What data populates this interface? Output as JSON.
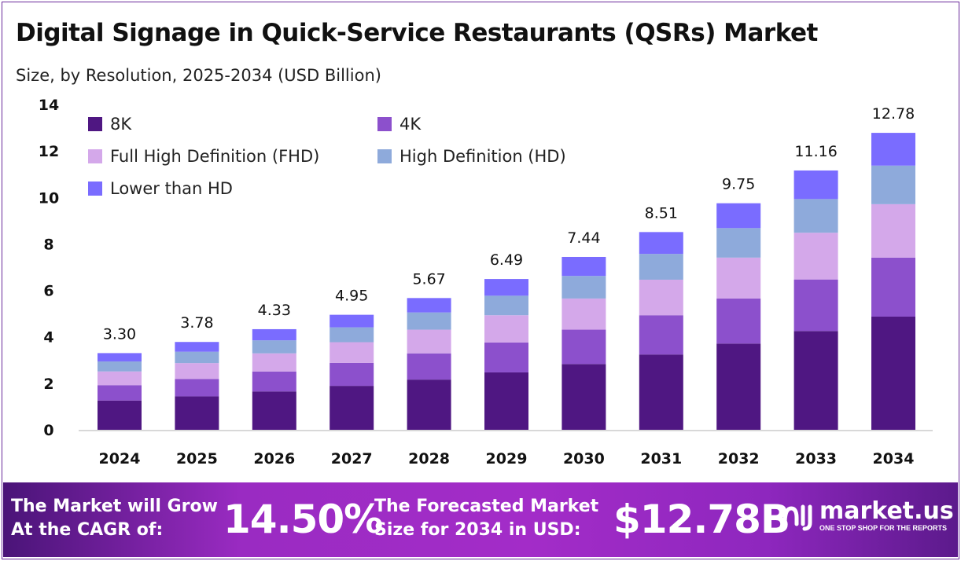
{
  "title": "Digital Signage in Quick-Service Restaurants (QSRs) Market",
  "subtitle": "Size, by Resolution, 2025-2034 (USD Billion)",
  "chart_data": {
    "type": "bar",
    "stacked": true,
    "categories": [
      "2024",
      "2025",
      "2026",
      "2027",
      "2028",
      "2029",
      "2030",
      "2031",
      "2032",
      "2033",
      "2034"
    ],
    "ylim": [
      0,
      14
    ],
    "yticks": [
      0,
      2,
      4,
      6,
      8,
      10,
      12,
      14
    ],
    "grid": false,
    "legend": "top-left",
    "totals": [
      "3.30",
      "3.78",
      "4.33",
      "4.95",
      "5.67",
      "6.49",
      "7.44",
      "8.51",
      "9.75",
      "11.16",
      "12.78"
    ],
    "series": [
      {
        "name": "8K",
        "color": "#4f1782",
        "values": [
          1.26,
          1.44,
          1.65,
          1.89,
          2.16,
          2.47,
          2.83,
          3.24,
          3.71,
          4.25,
          4.87
        ]
      },
      {
        "name": "4K",
        "color": "#8c50cc",
        "values": [
          0.66,
          0.75,
          0.86,
          0.99,
          1.13,
          1.29,
          1.48,
          1.69,
          1.94,
          2.22,
          2.54
        ]
      },
      {
        "name": "Full High Definition (FHD)",
        "color": "#d4a8ea",
        "values": [
          0.59,
          0.68,
          0.78,
          0.89,
          1.02,
          1.17,
          1.34,
          1.53,
          1.76,
          2.01,
          2.3
        ]
      },
      {
        "name": "High Definition (HD)",
        "color": "#8eaadb",
        "values": [
          0.43,
          0.49,
          0.56,
          0.64,
          0.74,
          0.84,
          0.97,
          1.11,
          1.27,
          1.45,
          1.66
        ]
      },
      {
        "name": "Lower than HD",
        "color": "#7a6cff",
        "values": [
          0.36,
          0.42,
          0.48,
          0.54,
          0.62,
          0.72,
          0.82,
          0.94,
          1.07,
          1.23,
          1.41
        ]
      }
    ]
  },
  "footer": {
    "cagr_text_1": "The Market will Grow",
    "cagr_text_2": "At the CAGR of:",
    "cagr": "14.50%",
    "forecast_text_1": "The Forecasted Market",
    "forecast_text_2": "Size for 2034 in USD:",
    "forecast": "$12.78B",
    "brand": "market.us",
    "tagline": "ONE STOP SHOP FOR THE REPORTS"
  }
}
